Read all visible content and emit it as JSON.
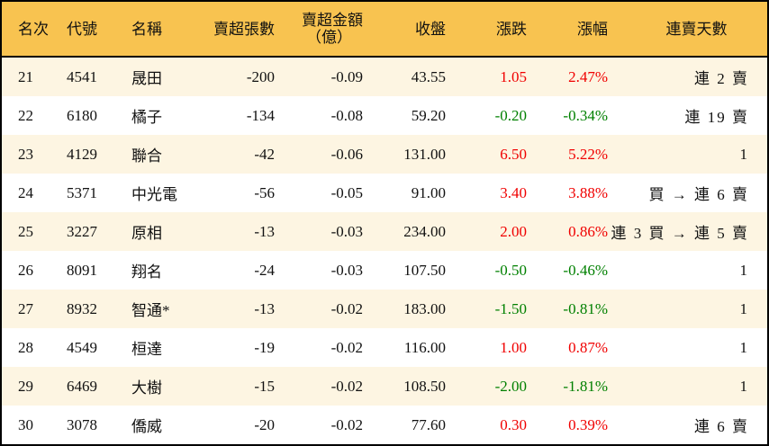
{
  "colors": {
    "header_bg": "#F8C350",
    "row_odd": "#FDF5E2",
    "row_even": "#FFFFFF",
    "up": "#F00000",
    "down": "#008000"
  },
  "headers": {
    "rank": "名次",
    "code": "代號",
    "name": "名稱",
    "sell_lots": "賣超張數",
    "sell_amount": "賣超金額",
    "sell_amount_unit": "（億）",
    "close": "收盤",
    "change": "漲跌",
    "change_pct": "漲幅",
    "streak": "連賣天數"
  },
  "rows": [
    {
      "rank": "21",
      "code": "4541",
      "name": "晟田",
      "sell_lots": "-200",
      "sell_amount": "-0.09",
      "close": "43.55",
      "change": "1.05",
      "change_pct": "2.47%",
      "dir": "up",
      "streak": "連 2 賣"
    },
    {
      "rank": "22",
      "code": "6180",
      "name": "橘子",
      "sell_lots": "-134",
      "sell_amount": "-0.08",
      "close": "59.20",
      "change": "-0.20",
      "change_pct": "-0.34%",
      "dir": "down",
      "streak": "連 19 賣"
    },
    {
      "rank": "23",
      "code": "4129",
      "name": "聯合",
      "sell_lots": "-42",
      "sell_amount": "-0.06",
      "close": "131.00",
      "change": "6.50",
      "change_pct": "5.22%",
      "dir": "up",
      "streak": "1"
    },
    {
      "rank": "24",
      "code": "5371",
      "name": "中光電",
      "sell_lots": "-56",
      "sell_amount": "-0.05",
      "close": "91.00",
      "change": "3.40",
      "change_pct": "3.88%",
      "dir": "up",
      "streak": "買 → 連 6 賣"
    },
    {
      "rank": "25",
      "code": "3227",
      "name": "原相",
      "sell_lots": "-13",
      "sell_amount": "-0.03",
      "close": "234.00",
      "change": "2.00",
      "change_pct": "0.86%",
      "dir": "up",
      "streak": "連 3 買 → 連 5 賣"
    },
    {
      "rank": "26",
      "code": "8091",
      "name": "翔名",
      "sell_lots": "-24",
      "sell_amount": "-0.03",
      "close": "107.50",
      "change": "-0.50",
      "change_pct": "-0.46%",
      "dir": "down",
      "streak": "1"
    },
    {
      "rank": "27",
      "code": "8932",
      "name": "智通*",
      "sell_lots": "-13",
      "sell_amount": "-0.02",
      "close": "183.00",
      "change": "-1.50",
      "change_pct": "-0.81%",
      "dir": "down",
      "streak": "1"
    },
    {
      "rank": "28",
      "code": "4549",
      "name": "桓達",
      "sell_lots": "-19",
      "sell_amount": "-0.02",
      "close": "116.00",
      "change": "1.00",
      "change_pct": "0.87%",
      "dir": "up",
      "streak": "1"
    },
    {
      "rank": "29",
      "code": "6469",
      "name": "大樹",
      "sell_lots": "-15",
      "sell_amount": "-0.02",
      "close": "108.50",
      "change": "-2.00",
      "change_pct": "-1.81%",
      "dir": "down",
      "streak": "1"
    },
    {
      "rank": "30",
      "code": "3078",
      "name": "僑威",
      "sell_lots": "-20",
      "sell_amount": "-0.02",
      "close": "77.60",
      "change": "0.30",
      "change_pct": "0.39%",
      "dir": "up",
      "streak": "連 6 賣"
    }
  ]
}
